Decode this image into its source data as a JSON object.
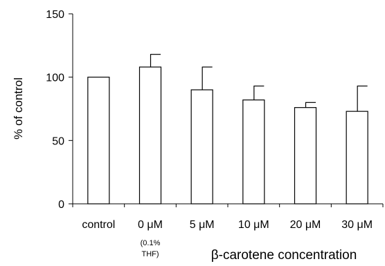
{
  "chart_data": {
    "type": "bar",
    "categories": [
      "control",
      "0 μM",
      "5 μM",
      "10 μM",
      "20 μM",
      "30 μM"
    ],
    "category_sublabels": [
      "",
      "(0.1%\nTHF)",
      "",
      "",
      "",
      ""
    ],
    "values": [
      100,
      108,
      90,
      82,
      76,
      73
    ],
    "error_upper": [
      0,
      10,
      18,
      11,
      4,
      20
    ],
    "ylabel": "% of control",
    "xlabel": "β-carotene concentration",
    "ylim": [
      0,
      150
    ],
    "yticks": [
      0,
      50,
      100,
      150
    ],
    "grid": false,
    "legend": "none",
    "bar_fill": "#ffffff",
    "bar_stroke": "#000000"
  }
}
